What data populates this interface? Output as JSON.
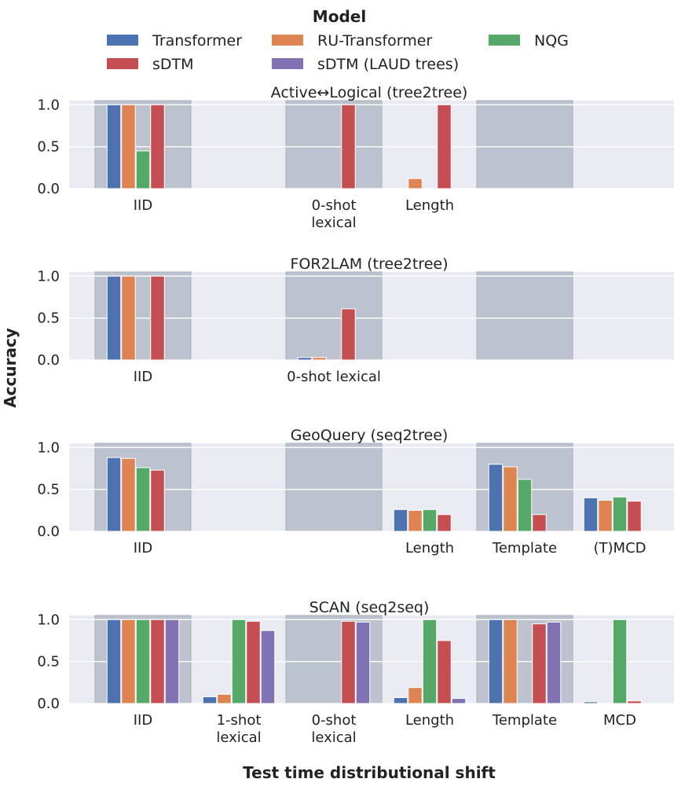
{
  "legend": {
    "title": "Model",
    "models": [
      {
        "name": "Transformer",
        "color": "#4c72b0"
      },
      {
        "name": "RU-Transformer",
        "color": "#dd8452"
      },
      {
        "name": "NQG",
        "color": "#55a868"
      },
      {
        "name": "sDTM",
        "color": "#c44e52"
      },
      {
        "name": "sDTM (LAUD trees)",
        "color": "#8172b3"
      }
    ]
  },
  "axes": {
    "ylabel": "Accuracy",
    "xlabel": "Test time distributional shift"
  },
  "colors": {
    "panel_background": "#eaeaf2",
    "grid": "#ffffff",
    "shade": "#bcc2ce",
    "shade_border": "#a9b0bf"
  },
  "chart_data": [
    {
      "type": "bar",
      "title": "Active↔Logical (tree2tree)",
      "ylim": [
        0,
        1.05
      ],
      "yticks": [
        "0.0",
        "0.5",
        "1.0"
      ],
      "categories": [
        {
          "label": [
            "IID"
          ],
          "shaded": true,
          "values": [
            1.0,
            1.0,
            0.45,
            1.0,
            null
          ]
        },
        {
          "label": [],
          "shaded": false,
          "values": []
        },
        {
          "label": [
            "0-shot",
            "lexical"
          ],
          "shaded": true,
          "values": [
            0.0,
            0.0,
            null,
            1.0,
            null
          ]
        },
        {
          "label": [
            "Length"
          ],
          "shaded": false,
          "values": [
            0.0,
            0.12,
            null,
            1.0,
            null
          ]
        },
        {
          "label": [],
          "shaded": true,
          "values": []
        },
        {
          "label": [],
          "shaded": false,
          "values": []
        }
      ]
    },
    {
      "type": "bar",
      "title": "FOR2LAM (tree2tree)",
      "ylim": [
        0,
        1.05
      ],
      "yticks": [
        "0.0",
        "0.5",
        "1.0"
      ],
      "categories": [
        {
          "label": [
            "IID"
          ],
          "shaded": true,
          "values": [
            1.0,
            1.0,
            null,
            1.0,
            null
          ]
        },
        {
          "label": [],
          "shaded": false,
          "values": []
        },
        {
          "label": [
            "0-shot lexical"
          ],
          "shaded": true,
          "values": [
            0.03,
            0.03,
            null,
            0.61,
            null
          ]
        },
        {
          "label": [],
          "shaded": false,
          "values": []
        },
        {
          "label": [],
          "shaded": true,
          "values": []
        },
        {
          "label": [],
          "shaded": false,
          "values": []
        }
      ]
    },
    {
      "type": "bar",
      "title": "GeoQuery (seq2tree)",
      "ylim": [
        0,
        1.05
      ],
      "yticks": [
        "0.0",
        "0.5",
        "1.0"
      ],
      "categories": [
        {
          "label": [
            "IID"
          ],
          "shaded": true,
          "values": [
            0.88,
            0.87,
            0.76,
            0.73,
            null
          ]
        },
        {
          "label": [],
          "shaded": false,
          "values": []
        },
        {
          "label": [],
          "shaded": true,
          "values": []
        },
        {
          "label": [
            "Length"
          ],
          "shaded": false,
          "values": [
            0.26,
            0.25,
            0.26,
            0.2,
            null
          ]
        },
        {
          "label": [
            "Template"
          ],
          "shaded": true,
          "values": [
            0.8,
            0.77,
            0.62,
            0.2,
            null
          ]
        },
        {
          "label": [
            "(T)MCD"
          ],
          "shaded": false,
          "values": [
            0.4,
            0.37,
            0.41,
            0.36,
            null
          ]
        }
      ]
    },
    {
      "type": "bar",
      "title": "SCAN (seq2seq)",
      "ylim": [
        0,
        1.05
      ],
      "yticks": [
        "0.0",
        "0.5",
        "1.0"
      ],
      "categories": [
        {
          "label": [
            "IID"
          ],
          "shaded": true,
          "values": [
            1.0,
            1.0,
            1.0,
            1.0,
            1.0
          ]
        },
        {
          "label": [
            "1-shot",
            "lexical"
          ],
          "shaded": false,
          "values": [
            0.08,
            0.11,
            1.0,
            0.98,
            0.87
          ]
        },
        {
          "label": [
            "0-shot",
            "lexical"
          ],
          "shaded": true,
          "values": [
            0.0,
            0.0,
            0.0,
            0.98,
            0.97
          ]
        },
        {
          "label": [
            "Length"
          ],
          "shaded": false,
          "values": [
            0.07,
            0.19,
            1.0,
            0.75,
            0.06
          ]
        },
        {
          "label": [
            "Template"
          ],
          "shaded": true,
          "values": [
            1.0,
            1.0,
            0.0,
            0.95,
            0.97
          ]
        },
        {
          "label": [
            "MCD"
          ],
          "shaded": false,
          "values": [
            0.02,
            0.0,
            1.0,
            0.03,
            0.0
          ]
        }
      ]
    }
  ]
}
